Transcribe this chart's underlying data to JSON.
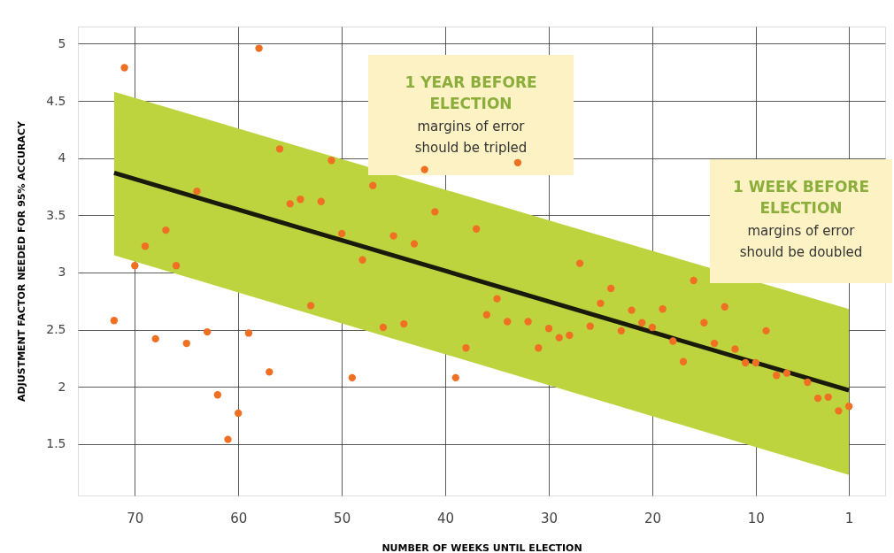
{
  "chart_data": {
    "type": "scatter",
    "xlabel": "NUMBER OF WEEKS UNTIL ELECTION",
    "ylabel": "ADJUSTMENT FACTOR NEEDED FOR 95% ACCURACY",
    "xlim": [
      75.5,
      -2.5
    ],
    "xticks": [
      70,
      60,
      50,
      40,
      30,
      20,
      10,
      1
    ],
    "ylim": [
      1.05,
      5.15
    ],
    "yticks": [
      1.5,
      2,
      2.5,
      3,
      3.5,
      4,
      4.5,
      5
    ],
    "grid": true,
    "series": [
      {
        "type": "line",
        "color": "#1a1a0a",
        "x": [
          72,
          1
        ],
        "values": [
          3.87,
          1.97
        ],
        "lower": [
          3.15,
          1.23
        ],
        "upper": [
          4.58,
          2.68
        ]
      },
      {
        "color": "#f07023",
        "marker": "circle",
        "x": [
          72,
          71,
          70,
          69,
          68,
          67,
          66,
          65,
          64,
          63,
          62,
          61,
          60,
          59,
          58,
          57,
          56,
          55,
          54,
          53,
          52,
          51,
          50,
          49,
          48,
          47,
          46,
          45,
          44,
          43,
          42,
          41,
          39,
          38,
          37,
          36,
          35,
          34,
          33,
          32,
          31,
          30,
          29,
          28,
          27,
          26,
          25,
          24,
          23,
          22,
          21,
          20,
          19,
          18,
          17,
          16,
          15,
          14,
          13,
          12,
          11,
          10,
          9,
          8,
          7,
          5,
          4,
          3,
          2,
          1
        ],
        "values": [
          2.58,
          4.79,
          3.06,
          3.23,
          2.42,
          3.37,
          3.06,
          2.38,
          3.71,
          2.48,
          1.93,
          1.54,
          1.77,
          2.47,
          4.96,
          2.13,
          4.08,
          3.6,
          3.64,
          2.71,
          3.62,
          3.98,
          3.34,
          2.08,
          3.11,
          3.76,
          2.52,
          3.32,
          2.55,
          3.25,
          3.9,
          3.53,
          2.08,
          2.34,
          3.38,
          2.63,
          2.77,
          2.57,
          3.96,
          2.57,
          2.34,
          2.51,
          2.43,
          2.45,
          3.08,
          2.53,
          2.73,
          2.86,
          2.49,
          2.67,
          2.56,
          2.52,
          2.68,
          2.4,
          2.22,
          2.93,
          2.56,
          2.38,
          2.7,
          2.33,
          2.21,
          2.21,
          2.49,
          2.1,
          2.12,
          2.04,
          1.9,
          1.91,
          1.79,
          1.83
        ]
      }
    ],
    "annotations": [
      "1 YEAR BEFORE\nELECTION",
      "margins of error\nshould be tripled",
      "1 WEEK BEFORE\nELECTION",
      "margins of error\nshould be doubled"
    ]
  }
}
